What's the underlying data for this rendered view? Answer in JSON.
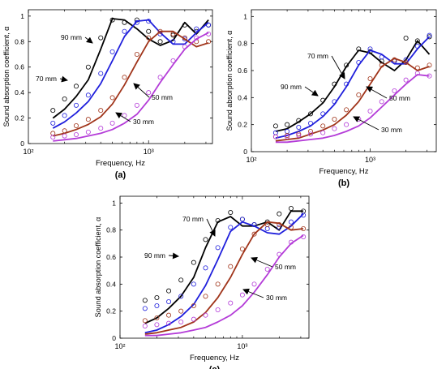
{
  "colors": {
    "90 mm": "#000000",
    "70 mm": "#1f1fdc",
    "50 mm": "#a0341a",
    "30 mm": "#b43cd8",
    "axis": "#000000"
  },
  "chart_data": [
    {
      "type": "line",
      "panel_label": "(a)",
      "xlabel": "Frequency, Hz",
      "ylabel": "Sound absorption coefficient, α",
      "xscale": "log",
      "xlim": [
        100,
        3400
      ],
      "ylim": [
        0,
        1.05
      ],
      "xtick_labels": [
        "10²",
        "10³"
      ],
      "ytick_labels": [
        "0",
        "0.2",
        "0.4",
        "0.6",
        "0.8",
        "1"
      ],
      "series": [
        {
          "name": "90 mm",
          "model": {
            "x": [
              160,
              200,
              250,
              315,
              400,
              500,
              630,
              800,
              1000,
              1250,
              1600,
              2000,
              2500,
              3150
            ],
            "y": [
              0.2,
              0.27,
              0.37,
              0.5,
              0.74,
              0.98,
              0.97,
              0.9,
              0.82,
              0.77,
              0.81,
              0.95,
              0.86,
              0.97
            ]
          },
          "measured": {
            "x": [
              160,
              200,
              250,
              315,
              400,
              500,
              630,
              800,
              1000,
              1250,
              1600,
              2000,
              2500,
              3150
            ],
            "y": [
              0.26,
              0.35,
              0.45,
              0.6,
              0.83,
              0.97,
              0.95,
              0.97,
              0.88,
              0.8,
              0.85,
              0.93,
              0.88,
              0.93
            ]
          }
        },
        {
          "name": "70 mm",
          "model": {
            "x": [
              160,
              200,
              250,
              315,
              400,
              500,
              630,
              800,
              1000,
              1250,
              1600,
              2000,
              2500,
              3150
            ],
            "y": [
              0.12,
              0.17,
              0.24,
              0.33,
              0.47,
              0.65,
              0.84,
              0.96,
              0.97,
              0.87,
              0.78,
              0.78,
              0.87,
              0.95
            ]
          },
          "measured": {
            "x": [
              160,
              200,
              250,
              315,
              400,
              500,
              630,
              800,
              1000,
              1250,
              1600,
              2000,
              2500,
              3150
            ],
            "y": [
              0.16,
              0.22,
              0.3,
              0.38,
              0.55,
              0.72,
              0.88,
              0.95,
              0.96,
              0.86,
              0.8,
              0.82,
              0.9,
              0.93
            ]
          }
        },
        {
          "name": "50 mm",
          "model": {
            "x": [
              160,
              200,
              250,
              315,
              400,
              500,
              630,
              800,
              1000,
              1250,
              1600,
              2000,
              2500,
              3150
            ],
            "y": [
              0.06,
              0.08,
              0.11,
              0.15,
              0.21,
              0.31,
              0.46,
              0.64,
              0.8,
              0.88,
              0.88,
              0.82,
              0.76,
              0.79
            ]
          },
          "measured": {
            "x": [
              160,
              200,
              250,
              315,
              400,
              500,
              630,
              800,
              1000,
              1250,
              1600,
              2000,
              2500,
              3150
            ],
            "y": [
              0.08,
              0.1,
              0.14,
              0.19,
              0.26,
              0.36,
              0.52,
              0.7,
              0.83,
              0.88,
              0.86,
              0.83,
              0.8,
              0.8
            ]
          }
        },
        {
          "name": "30 mm",
          "model": {
            "x": [
              160,
              200,
              250,
              315,
              400,
              500,
              630,
              800,
              1000,
              1250,
              1600,
              2000,
              2500,
              3150
            ],
            "y": [
              0.02,
              0.03,
              0.04,
              0.06,
              0.08,
              0.11,
              0.16,
              0.23,
              0.34,
              0.48,
              0.62,
              0.74,
              0.82,
              0.87
            ]
          },
          "measured": {
            "x": [
              160,
              200,
              250,
              315,
              400,
              500,
              630,
              800,
              1000,
              1250,
              1600,
              2000,
              2500,
              3150
            ],
            "y": [
              0.05,
              0.06,
              0.07,
              0.09,
              0.12,
              0.16,
              0.22,
              0.3,
              0.4,
              0.52,
              0.65,
              0.76,
              0.83,
              0.86
            ]
          }
        }
      ],
      "annotations": [
        {
          "text": "90 mm",
          "series": "90 mm"
        },
        {
          "text": "70 mm",
          "series": "70 mm"
        },
        {
          "text": "50 mm",
          "series": "50 mm"
        },
        {
          "text": "30 mm",
          "series": "30 mm"
        }
      ]
    },
    {
      "type": "line",
      "panel_label": "(b)",
      "xlabel": "Frequency, Hz",
      "ylabel": "Sound absorption coefficient, α",
      "xscale": "log",
      "xlim": [
        100,
        3600
      ],
      "ylim": [
        0,
        1.05
      ],
      "xtick_labels": [
        "10²",
        "10³"
      ],
      "ytick_labels": [
        "0",
        "0.2",
        "0.4",
        "0.6",
        "0.8",
        "1"
      ],
      "series": [
        {
          "name": "90 mm",
          "model": {
            "x": [
              160,
              200,
              250,
              315,
              400,
              500,
              630,
              800,
              1000,
              1250,
              1600,
              2000,
              2500,
              3150
            ],
            "y": [
              0.15,
              0.17,
              0.22,
              0.28,
              0.36,
              0.48,
              0.63,
              0.75,
              0.73,
              0.66,
              0.6,
              0.68,
              0.82,
              0.72
            ]
          },
          "measured": {
            "x": [
              160,
              200,
              250,
              315,
              400,
              500,
              630,
              800,
              1000,
              1250,
              1600,
              2000,
              2500,
              3150
            ],
            "y": [
              0.19,
              0.2,
              0.23,
              0.28,
              0.38,
              0.5,
              0.64,
              0.76,
              0.74,
              0.67,
              0.67,
              0.84,
              0.82,
              0.85
            ]
          }
        },
        {
          "name": "70 mm",
          "model": {
            "x": [
              160,
              200,
              250,
              315,
              400,
              500,
              630,
              800,
              1000,
              1250,
              1600,
              2000,
              2500,
              3150
            ],
            "y": [
              0.1,
              0.12,
              0.15,
              0.19,
              0.26,
              0.35,
              0.48,
              0.64,
              0.75,
              0.72,
              0.65,
              0.65,
              0.76,
              0.85
            ]
          },
          "measured": {
            "x": [
              160,
              200,
              250,
              315,
              400,
              500,
              630,
              800,
              1000,
              1250,
              1600,
              2000,
              2500,
              3150
            ],
            "y": [
              0.14,
              0.15,
              0.18,
              0.21,
              0.28,
              0.37,
              0.5,
              0.66,
              0.76,
              0.7,
              0.67,
              0.68,
              0.78,
              0.86
            ]
          }
        },
        {
          "name": "50 mm",
          "model": {
            "x": [
              160,
              200,
              250,
              315,
              400,
              500,
              630,
              800,
              1000,
              1250,
              1600,
              2000,
              2500,
              3150
            ],
            "y": [
              0.08,
              0.09,
              0.1,
              0.13,
              0.16,
              0.2,
              0.27,
              0.37,
              0.5,
              0.63,
              0.69,
              0.66,
              0.6,
              0.63
            ]
          },
          "measured": {
            "x": [
              160,
              200,
              250,
              315,
              400,
              500,
              630,
              800,
              1000,
              1250,
              1600,
              2000,
              2500,
              3150
            ],
            "y": [
              0.11,
              0.12,
              0.13,
              0.15,
              0.19,
              0.24,
              0.31,
              0.42,
              0.54,
              0.64,
              0.68,
              0.66,
              0.62,
              0.64
            ]
          }
        },
        {
          "name": "30 mm",
          "model": {
            "x": [
              160,
              200,
              250,
              315,
              400,
              500,
              630,
              800,
              1000,
              1250,
              1600,
              2000,
              2500,
              3150
            ],
            "y": [
              0.07,
              0.07,
              0.08,
              0.09,
              0.1,
              0.12,
              0.15,
              0.19,
              0.25,
              0.33,
              0.42,
              0.5,
              0.57,
              0.56
            ]
          },
          "measured": {
            "x": [
              160,
              200,
              250,
              315,
              400,
              500,
              630,
              800,
              1000,
              1250,
              1600,
              2000,
              2500,
              3150
            ],
            "y": [
              0.11,
              0.11,
              0.12,
              0.13,
              0.14,
              0.17,
              0.2,
              0.24,
              0.3,
              0.37,
              0.45,
              0.53,
              0.58,
              0.56
            ]
          }
        }
      ],
      "annotations": [
        {
          "text": "70 mm",
          "series": "70 mm"
        },
        {
          "text": "90 mm",
          "series": "90 mm"
        },
        {
          "text": "50 mm",
          "series": "50 mm"
        },
        {
          "text": "30 mm",
          "series": "30 mm"
        }
      ]
    },
    {
      "type": "line",
      "panel_label": "(c)",
      "xlabel": "Frequency, Hz",
      "ylabel": "Sound absorption coefficient, α",
      "xscale": "log",
      "xlim": [
        100,
        3500
      ],
      "ylim": [
        0,
        1.05
      ],
      "xtick_labels": [
        "10²",
        "10³"
      ],
      "ytick_labels": [
        "0",
        "0.2",
        "0.4",
        "0.6",
        "0.8",
        "1"
      ],
      "series": [
        {
          "name": "90 mm",
          "model": {
            "x": [
              160,
              200,
              250,
              315,
              400,
              500,
              630,
              800,
              1000,
              1250,
              1600,
              2000,
              2500,
              3150
            ],
            "y": [
              0.11,
              0.15,
              0.22,
              0.31,
              0.45,
              0.67,
              0.86,
              0.9,
              0.83,
              0.83,
              0.86,
              0.8,
              0.94,
              0.94
            ]
          },
          "measured": {
            "x": [
              160,
              200,
              250,
              315,
              400,
              500,
              630,
              800,
              1000,
              1250,
              1600,
              2000,
              2500,
              3150
            ],
            "y": [
              0.28,
              0.3,
              0.35,
              0.43,
              0.56,
              0.73,
              0.87,
              0.93,
              0.88,
              0.84,
              0.86,
              0.92,
              0.96,
              0.94
            ]
          }
        },
        {
          "name": "70 mm",
          "model": {
            "x": [
              160,
              200,
              250,
              315,
              400,
              500,
              630,
              800,
              1000,
              1250,
              1600,
              2000,
              2500,
              3150
            ],
            "y": [
              0.04,
              0.06,
              0.1,
              0.16,
              0.25,
              0.39,
              0.58,
              0.79,
              0.86,
              0.83,
              0.78,
              0.77,
              0.83,
              0.92
            ]
          },
          "measured": {
            "x": [
              160,
              200,
              250,
              315,
              400,
              500,
              630,
              800,
              1000,
              1250,
              1600,
              2000,
              2500,
              3150
            ],
            "y": [
              0.22,
              0.24,
              0.27,
              0.31,
              0.4,
              0.52,
              0.67,
              0.82,
              0.88,
              0.84,
              0.81,
              0.82,
              0.86,
              0.91
            ]
          }
        },
        {
          "name": "50 mm",
          "model": {
            "x": [
              160,
              200,
              250,
              315,
              400,
              500,
              630,
              800,
              1000,
              1250,
              1600,
              2000,
              2500,
              3150
            ],
            "y": [
              0.03,
              0.04,
              0.06,
              0.08,
              0.12,
              0.19,
              0.3,
              0.45,
              0.62,
              0.77,
              0.86,
              0.85,
              0.8,
              0.81
            ]
          },
          "measured": {
            "x": [
              160,
              200,
              250,
              315,
              400,
              500,
              630,
              800,
              1000,
              1250,
              1600,
              2000,
              2500,
              3150
            ],
            "y": [
              0.13,
              0.15,
              0.17,
              0.2,
              0.24,
              0.31,
              0.4,
              0.53,
              0.66,
              0.77,
              0.84,
              0.84,
              0.82,
              0.81
            ]
          }
        },
        {
          "name": "30 mm",
          "model": {
            "x": [
              160,
              200,
              250,
              315,
              400,
              500,
              630,
              800,
              1000,
              1250,
              1600,
              2000,
              2500,
              3150
            ],
            "y": [
              0.02,
              0.02,
              0.03,
              0.04,
              0.06,
              0.08,
              0.12,
              0.17,
              0.24,
              0.34,
              0.47,
              0.6,
              0.7,
              0.76
            ]
          },
          "measured": {
            "x": [
              160,
              200,
              250,
              315,
              400,
              500,
              630,
              800,
              1000,
              1250,
              1600,
              2000,
              2500,
              3150
            ],
            "y": [
              0.09,
              0.1,
              0.11,
              0.12,
              0.14,
              0.17,
              0.21,
              0.26,
              0.32,
              0.4,
              0.51,
              0.62,
              0.71,
              0.75
            ]
          }
        }
      ],
      "annotations": [
        {
          "text": "70 mm",
          "series": "70 mm"
        },
        {
          "text": "90 mm",
          "series": "90 mm"
        },
        {
          "text": "50 mm",
          "series": "50 mm"
        },
        {
          "text": "30 mm",
          "series": "30 mm"
        }
      ]
    }
  ]
}
